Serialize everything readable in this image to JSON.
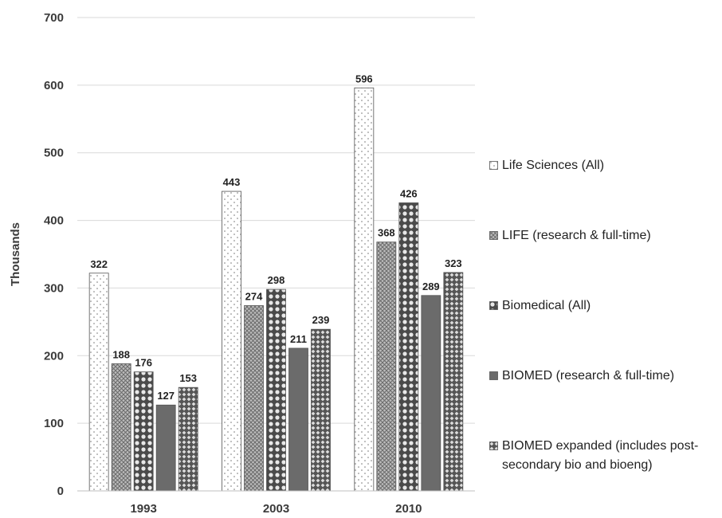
{
  "chart_data": {
    "type": "bar",
    "categories": [
      "1993",
      "2003",
      "2010"
    ],
    "ylabel": "Thousands",
    "ylim": [
      0,
      700
    ],
    "yticks": [
      0,
      100,
      200,
      300,
      400,
      500,
      600,
      700
    ],
    "grid": true,
    "legend_position": "right",
    "series": [
      {
        "name": "Life Sciences (All)",
        "values": [
          322,
          443,
          596
        ],
        "pattern": "dots",
        "color": "#ffffff"
      },
      {
        "name": "LIFE (research & full-time)",
        "values": [
          188,
          274,
          368
        ],
        "pattern": "crosshatch",
        "color": "#9a9a9a"
      },
      {
        "name": "Biomedical (All)",
        "values": [
          176,
          298,
          426
        ],
        "pattern": "circles",
        "color": "#5a5a5a"
      },
      {
        "name": "BIOMED (research & full-time)",
        "values": [
          127,
          211,
          289
        ],
        "pattern": "solid",
        "color": "#6b6b6b"
      },
      {
        "name": "BIOMED expanded (includes post-secondary bio and bioeng)",
        "values": [
          153,
          239,
          323
        ],
        "pattern": "diamonds",
        "color": "#7a7a7a"
      }
    ]
  }
}
